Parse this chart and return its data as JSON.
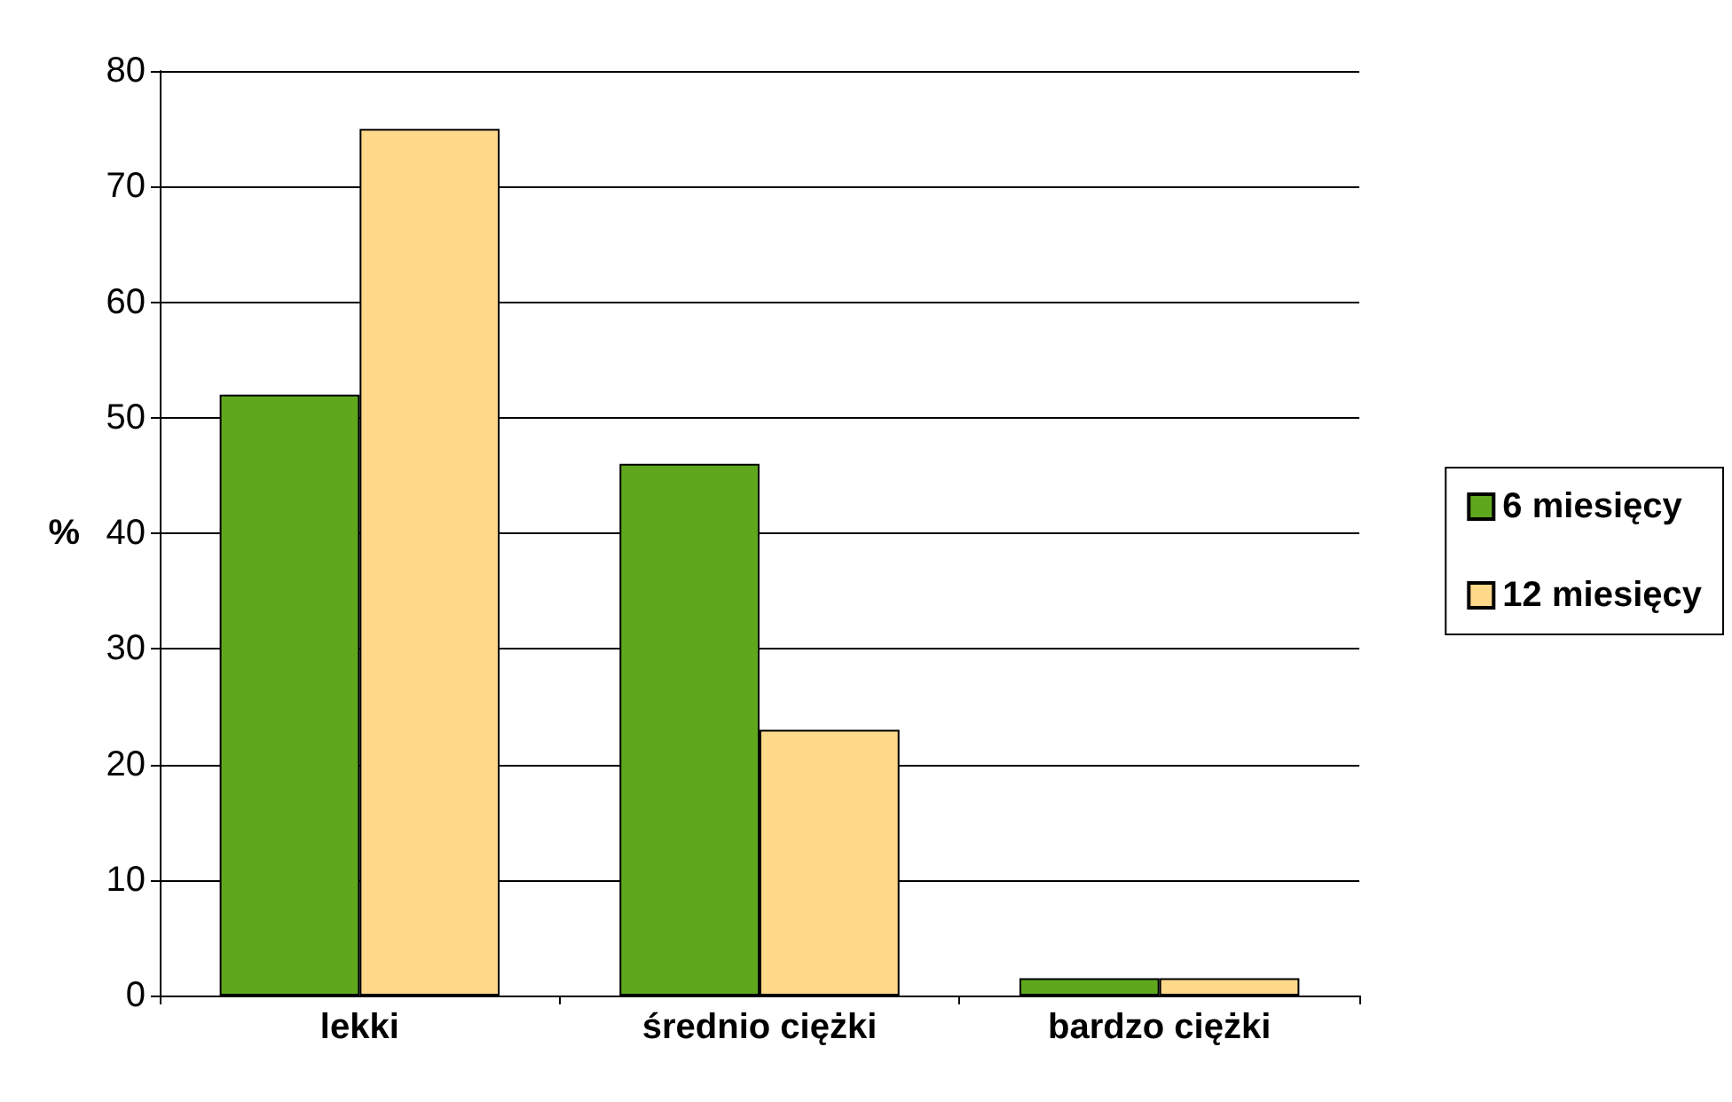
{
  "chart_data": {
    "type": "bar",
    "ylabel": "%",
    "categories": [
      "lekki",
      "średnio ciężki",
      "bardzo ciężki"
    ],
    "series": [
      {
        "name": "6 miesięcy",
        "color": "#5fa81e",
        "values": [
          52,
          46,
          1.5
        ]
      },
      {
        "name": "12 miesięcy",
        "color": "#ffd98a",
        "values": [
          75,
          23,
          1.5
        ]
      }
    ],
    "ylim": [
      0,
      80
    ],
    "yticks": [
      0,
      10,
      20,
      30,
      40,
      50,
      60,
      70,
      80
    ],
    "grid": "y",
    "legend": "right"
  }
}
